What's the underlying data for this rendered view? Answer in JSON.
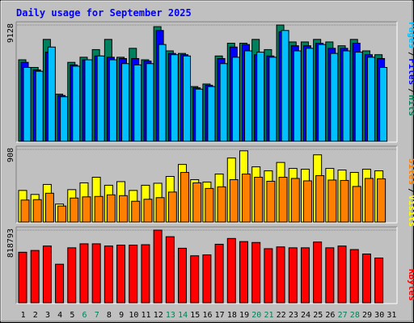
{
  "title": "Daily usage for September 2025",
  "colors": {
    "background": "#C0C0C0",
    "hits": "#00805C",
    "files": "#0000FF",
    "pages": "#00C0FF",
    "visits": "#FFFF00",
    "sites": "#FF8000",
    "kbytes": "#FF0000",
    "title": "#0000FF",
    "weekend_label": "#00805C",
    "weekday_label": "#000000"
  },
  "chart_data": [
    {
      "type": "bar",
      "panel": "top",
      "ytick_label": "9128",
      "ylim": [
        0,
        9128
      ],
      "legend_placement": "right",
      "legend": [
        "Pages",
        "Files",
        "Hits"
      ],
      "categories": [
        "1",
        "2",
        "3",
        "4",
        "5",
        "6",
        "7",
        "8",
        "9",
        "10",
        "11",
        "12",
        "13",
        "14",
        "15",
        "16",
        "17",
        "18",
        "19",
        "20",
        "21",
        "22",
        "23",
        "24",
        "25",
        "26",
        "27",
        "28",
        "29",
        "30",
        "31"
      ],
      "weekend_days": [
        "6",
        "7",
        "13",
        "14",
        "20",
        "21",
        "27",
        "28"
      ],
      "series": [
        {
          "name": "Hits",
          "values": [
            6400,
            5800,
            8000,
            3700,
            6200,
            6600,
            7200,
            8000,
            6600,
            7300,
            6400,
            9000,
            7100,
            6900,
            4300,
            4500,
            6700,
            7700,
            7700,
            8000,
            7200,
            9128,
            7800,
            7800,
            8000,
            7800,
            7500,
            8000,
            7100,
            6800,
            null
          ]
        },
        {
          "name": "Files",
          "values": [
            6200,
            5600,
            7000,
            3600,
            6000,
            6400,
            6700,
            6600,
            6500,
            6500,
            6300,
            8700,
            6900,
            6800,
            4200,
            4400,
            6500,
            7400,
            7600,
            6800,
            6700,
            8600,
            7500,
            7500,
            7700,
            7300,
            7300,
            7700,
            6800,
            6500,
            null
          ]
        },
        {
          "name": "Pages",
          "values": [
            5800,
            5500,
            7400,
            3500,
            5900,
            6400,
            6700,
            6400,
            6100,
            6000,
            6100,
            7600,
            6800,
            6700,
            4100,
            4300,
            6100,
            6600,
            7100,
            7000,
            6600,
            8700,
            7100,
            7300,
            7600,
            6900,
            7100,
            7000,
            6600,
            5800,
            null
          ]
        }
      ]
    },
    {
      "type": "bar",
      "panel": "middle",
      "ytick_label": "908",
      "ylim": [
        0,
        908
      ],
      "legend_placement": "right",
      "legend": [
        "Sites",
        "Visits"
      ],
      "categories": [
        "1",
        "2",
        "3",
        "4",
        "5",
        "6",
        "7",
        "8",
        "9",
        "10",
        "11",
        "12",
        "13",
        "14",
        "15",
        "16",
        "17",
        "18",
        "19",
        "20",
        "21",
        "22",
        "23",
        "24",
        "25",
        "26",
        "27",
        "28",
        "29",
        "30",
        "31"
      ],
      "series": [
        {
          "name": "Visits",
          "values": [
            395,
            345,
            470,
            225,
            405,
            490,
            560,
            460,
            505,
            395,
            460,
            485,
            570,
            720,
            530,
            500,
            600,
            800,
            890,
            690,
            640,
            745,
            670,
            660,
            840,
            670,
            650,
            620,
            660,
            640,
            null
          ]
        },
        {
          "name": "Sites",
          "values": [
            275,
            280,
            360,
            200,
            300,
            315,
            320,
            340,
            330,
            260,
            285,
            305,
            375,
            620,
            490,
            420,
            440,
            530,
            600,
            560,
            510,
            560,
            545,
            515,
            580,
            525,
            520,
            445,
            545,
            540,
            null
          ]
        }
      ]
    },
    {
      "type": "bar",
      "panel": "bottom",
      "ytick_label": "818793",
      "ylim": [
        0,
        818793
      ],
      "legend_placement": "right",
      "legend": [
        "KBytes"
      ],
      "categories": [
        "1",
        "2",
        "3",
        "4",
        "5",
        "6",
        "7",
        "8",
        "9",
        "10",
        "11",
        "12",
        "13",
        "14",
        "15",
        "16",
        "17",
        "18",
        "19",
        "20",
        "21",
        "22",
        "23",
        "24",
        "25",
        "26",
        "27",
        "28",
        "29",
        "30",
        "31"
      ],
      "series": [
        {
          "name": "KBytes",
          "values": [
            570000,
            590000,
            640000,
            435000,
            620000,
            665000,
            665000,
            640000,
            650000,
            650000,
            655000,
            818793,
            745000,
            615000,
            530000,
            540000,
            660000,
            725000,
            690000,
            680000,
            610000,
            630000,
            620000,
            620000,
            685000,
            620000,
            640000,
            600000,
            550000,
            505000,
            null
          ]
        }
      ]
    }
  ]
}
